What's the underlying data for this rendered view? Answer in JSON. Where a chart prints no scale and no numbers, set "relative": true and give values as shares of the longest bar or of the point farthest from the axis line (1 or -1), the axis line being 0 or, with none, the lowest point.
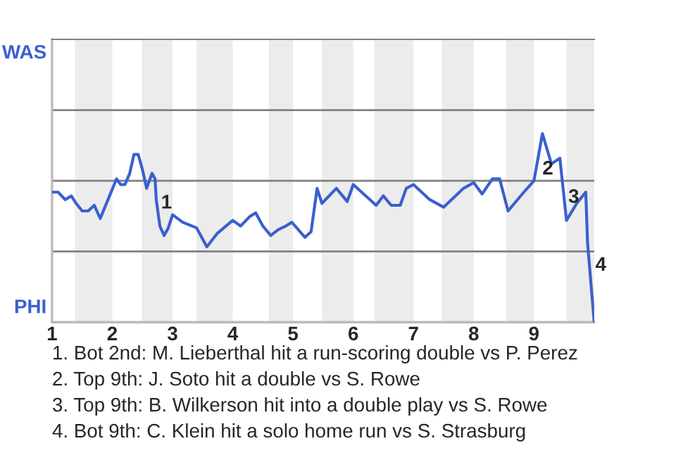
{
  "chart_data": {
    "type": "line",
    "relative": true,
    "series": [
      {
        "color": "#3b5fd0",
        "x": [
          1.0,
          1.1,
          1.22,
          1.32,
          1.4,
          1.5,
          1.6,
          1.7,
          1.8,
          2.07,
          2.14,
          2.21,
          2.29,
          2.36,
          2.43,
          2.5,
          2.57,
          2.66,
          2.71,
          2.73,
          2.79,
          2.86,
          2.93,
          3.0,
          3.17,
          3.4,
          3.57,
          3.74,
          4.0,
          4.13,
          4.28,
          4.38,
          4.5,
          4.63,
          4.75,
          4.88,
          4.98,
          5.2,
          5.3,
          5.4,
          5.48,
          5.72,
          5.9,
          6.0,
          6.38,
          6.5,
          6.63,
          6.78,
          6.88,
          7.0,
          7.27,
          7.5,
          7.83,
          8.0,
          8.14,
          8.31,
          8.43,
          8.57,
          8.86,
          9.0,
          9.14,
          9.29,
          9.43,
          9.54,
          9.71,
          9.86,
          9.89,
          10.0
        ],
        "values": [
          0.69,
          0.69,
          0.65,
          0.67,
          0.63,
          0.59,
          0.59,
          0.62,
          0.55,
          0.76,
          0.73,
          0.73,
          0.79,
          0.89,
          0.89,
          0.81,
          0.71,
          0.79,
          0.76,
          0.65,
          0.51,
          0.46,
          0.5,
          0.57,
          0.53,
          0.5,
          0.4,
          0.47,
          0.54,
          0.51,
          0.56,
          0.58,
          0.51,
          0.46,
          0.49,
          0.51,
          0.53,
          0.45,
          0.48,
          0.71,
          0.63,
          0.71,
          0.64,
          0.73,
          0.62,
          0.67,
          0.62,
          0.62,
          0.71,
          0.73,
          0.65,
          0.61,
          0.71,
          0.74,
          0.68,
          0.76,
          0.76,
          0.59,
          0.7,
          0.75,
          1,
          0.84,
          0.87,
          0.54,
          0.63,
          0.69,
          0.42,
          0
        ]
      }
    ],
    "xlim": [
      1,
      10
    ],
    "xticks": [
      1,
      2,
      3,
      4,
      5,
      6,
      7,
      8,
      9
    ],
    "ref_lines": [
      {
        "axis": "y",
        "value": 0.375,
        "color": "#808080"
      },
      {
        "axis": "y",
        "value": 0.75,
        "color": "#808080"
      },
      {
        "axis": "y",
        "value": 1.125,
        "color": "#808080"
      }
    ],
    "bands": [
      {
        "axis": "x",
        "from": 1.38,
        "to": 2,
        "color": "#ececec"
      },
      {
        "axis": "x",
        "from": 2.49,
        "to": 3,
        "color": "#ececec"
      },
      {
        "axis": "x",
        "from": 3.4,
        "to": 4,
        "color": "#ececec"
      },
      {
        "axis": "x",
        "from": 4.6,
        "to": 5,
        "color": "#ececec"
      },
      {
        "axis": "x",
        "from": 5.48,
        "to": 6,
        "color": "#ececec"
      },
      {
        "axis": "x",
        "from": 6.35,
        "to": 7,
        "color": "#ececec"
      },
      {
        "axis": "x",
        "from": 7.47,
        "to": 8,
        "color": "#ececec"
      },
      {
        "axis": "x",
        "from": 8.54,
        "to": 9,
        "color": "#ececec"
      },
      {
        "axis": "x",
        "from": 9.54,
        "to": 10,
        "color": "#ececec"
      }
    ],
    "annotations": [
      "WAS",
      "PHI",
      {
        "text": "1",
        "x": 2.9,
        "y": 0.63
      },
      {
        "text": "2",
        "x": 9.23,
        "y": 0.81
      },
      {
        "text": "3",
        "x": 9.66,
        "y": 0.66
      },
      {
        "text": "4",
        "x": 10.11,
        "y": 0.3
      },
      "1. Bot 2nd: M. Lieberthal hit a run-scoring double vs P. Perez",
      "2. Top 9th: J. Soto hit a double vs S. Rowe",
      "3. Top 9th: B. Wilkerson hit into a double play vs S. Rowe",
      "4. Bot 9th: C. Klein hit a solo home run vs S. Strasburg"
    ]
  }
}
